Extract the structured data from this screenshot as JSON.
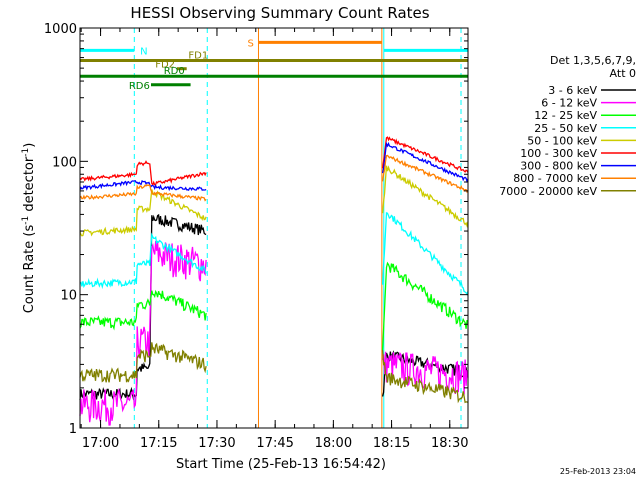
{
  "chart_data": {
    "type": "line",
    "title": "HESSI Observing Summary Count Rates",
    "xlabel": "Start Time (25-Feb-13 16:54:42)",
    "ylabel": "Count Rate (s⁻¹ detector⁻¹)",
    "ylabel_parts": [
      "Count Rate (s",
      "-1",
      " detector",
      "-1",
      ")"
    ],
    "y_scale": "log",
    "ylim": [
      1,
      1000
    ],
    "xlim_minutes": [
      0,
      100
    ],
    "x_ticks": [
      {
        "m": 5.3,
        "label": "17:00"
      },
      {
        "m": 20.3,
        "label": "17:15"
      },
      {
        "m": 35.3,
        "label": "17:30"
      },
      {
        "m": 50.3,
        "label": "17:45"
      },
      {
        "m": 65.3,
        "label": "18:00"
      },
      {
        "m": 80.3,
        "label": "18:15"
      },
      {
        "m": 95.3,
        "label": "18:30"
      }
    ],
    "y_ticks": [
      {
        "v": 1,
        "label": "1"
      },
      {
        "v": 10,
        "label": "10"
      },
      {
        "v": 100,
        "label": "100"
      },
      {
        "v": 1000,
        "label": "1000"
      }
    ],
    "legend": {
      "placement": "right",
      "header_lines": [
        "Det 1,3,5,6,7,9,",
        "Att 0"
      ],
      "entries": [
        {
          "label": "3 - 6 keV",
          "color": "#000000"
        },
        {
          "label": "6 - 12 keV",
          "color": "#ff00ff"
        },
        {
          "label": "12 - 25 keV",
          "color": "#00ff00"
        },
        {
          "label": "25 - 50 keV",
          "color": "#00ffff"
        },
        {
          "label": "50 - 100 keV",
          "color": "#cccc00"
        },
        {
          "label": "100 - 300 keV",
          "color": "#ff0000"
        },
        {
          "label": "300 - 800 keV",
          "color": "#0000ff"
        },
        {
          "label": "800 - 7000 keV",
          "color": "#ff8000"
        },
        {
          "label": "7000 - 20000 keV",
          "color": "#808000"
        }
      ]
    },
    "segments": [
      [
        0,
        32.5
      ],
      [
        78,
        100
      ]
    ],
    "series": [
      {
        "color": "#000000",
        "noise": 0.1,
        "points": [
          [
            0,
            1.8
          ],
          [
            14.5,
            1.8
          ],
          [
            14.6,
            2.8
          ],
          [
            18.2,
            2.8
          ],
          [
            18.3,
            38
          ],
          [
            32.5,
            30
          ],
          [
            78,
            1.7
          ],
          [
            79,
            3.5
          ],
          [
            100,
            2.6
          ]
        ]
      },
      {
        "color": "#ff00ff",
        "noise": 0.3,
        "points": [
          [
            0,
            1.5
          ],
          [
            14.5,
            1.5
          ],
          [
            14.6,
            4.5
          ],
          [
            18.2,
            4.5
          ],
          [
            18.3,
            21
          ],
          [
            32.5,
            17
          ],
          [
            78,
            3
          ],
          [
            79,
            3
          ],
          [
            100,
            2.5
          ]
        ]
      },
      {
        "color": "#00ff00",
        "noise": 0.1,
        "points": [
          [
            0,
            6.2
          ],
          [
            14.5,
            6.2
          ],
          [
            14.6,
            8.5
          ],
          [
            18.2,
            8.5
          ],
          [
            18.3,
            11
          ],
          [
            32.5,
            7
          ],
          [
            78,
            3.5
          ],
          [
            79,
            17
          ],
          [
            100,
            5.8
          ]
        ]
      },
      {
        "color": "#00ffff",
        "noise": 0.06,
        "points": [
          [
            0,
            12
          ],
          [
            14.5,
            12.5
          ],
          [
            14.6,
            17
          ],
          [
            18.2,
            17
          ],
          [
            18.3,
            27
          ],
          [
            32.5,
            15
          ],
          [
            78,
            12
          ],
          [
            79,
            42
          ],
          [
            100,
            10.5
          ]
        ]
      },
      {
        "color": "#cccc00",
        "noise": 0.05,
        "points": [
          [
            0,
            29
          ],
          [
            14.5,
            31
          ],
          [
            14.6,
            44
          ],
          [
            18.2,
            44
          ],
          [
            18.3,
            60
          ],
          [
            32.5,
            37
          ],
          [
            78,
            40
          ],
          [
            79,
            90
          ],
          [
            100,
            34
          ]
        ]
      },
      {
        "color": "#ff0000",
        "noise": 0.03,
        "points": [
          [
            0,
            73
          ],
          [
            14.5,
            80
          ],
          [
            14.6,
            95
          ],
          [
            18.2,
            98
          ],
          [
            18.3,
            67
          ],
          [
            32.5,
            82
          ],
          [
            78,
            90
          ],
          [
            79,
            150
          ],
          [
            100,
            83
          ]
        ]
      },
      {
        "color": "#0000ff",
        "noise": 0.03,
        "points": [
          [
            0,
            63
          ],
          [
            14.5,
            70
          ],
          [
            14.6,
            70
          ],
          [
            18.2,
            68
          ],
          [
            18.3,
            64
          ],
          [
            32.5,
            62
          ],
          [
            78,
            80
          ],
          [
            79,
            135
          ],
          [
            100,
            72
          ]
        ]
      },
      {
        "color": "#ff8000",
        "noise": 0.03,
        "points": [
          [
            0,
            53
          ],
          [
            14.5,
            57
          ],
          [
            14.6,
            63
          ],
          [
            18.2,
            66
          ],
          [
            18.3,
            58
          ],
          [
            32.5,
            52
          ],
          [
            78,
            70
          ],
          [
            79,
            110
          ],
          [
            100,
            60
          ]
        ]
      },
      {
        "color": "#808000",
        "noise": 0.12,
        "points": [
          [
            0,
            2.5
          ],
          [
            14.5,
            2.5
          ],
          [
            14.6,
            3.5
          ],
          [
            18.2,
            3.5
          ],
          [
            18.3,
            4.0
          ],
          [
            32.5,
            3.0
          ],
          [
            78,
            3.5
          ],
          [
            79,
            2.4
          ],
          [
            100,
            1.7
          ]
        ]
      }
    ],
    "attenuator_lines": [
      {
        "m": 14.0,
        "color": "#00ffff",
        "style": "dashed"
      },
      {
        "m": 32.8,
        "color": "#00ffff",
        "style": "dashed"
      },
      {
        "m": 78.3,
        "color": "#00ffff",
        "style": "solid"
      },
      {
        "m": 98.2,
        "color": "#00ffff",
        "style": "dashed"
      },
      {
        "m": 46.0,
        "color": "#ff8000",
        "style": "solid"
      },
      {
        "m": 77.8,
        "color": "#ff8000",
        "style": "solid"
      }
    ],
    "flag_bars": [
      {
        "label": "N",
        "color": "#00ffff",
        "start": 0,
        "end": 14.0,
        "start2": 78.3,
        "end2": 100,
        "level": 680
      },
      {
        "label": "S",
        "color": "#ff8000",
        "start": 46.0,
        "end": 77.8,
        "level": 780
      },
      {
        "label": "FD1",
        "color": "#808000",
        "start": 0,
        "end": 100,
        "level": 570
      },
      {
        "label": "FD2",
        "color": "#808000",
        "start": 25.0,
        "end": 27.5,
        "level": 495
      },
      {
        "label": "RD0",
        "color": "#008000",
        "start": 0,
        "end": 100,
        "level": 435
      },
      {
        "label": "RD6",
        "color": "#008000",
        "start": 18.3,
        "end": 28.5,
        "level": 375
      }
    ],
    "flag_labels": [
      "N",
      "S",
      "FD1",
      "FD2",
      "RD0",
      "RD6"
    ],
    "timestamp": "25-Feb-2013 23:04"
  }
}
